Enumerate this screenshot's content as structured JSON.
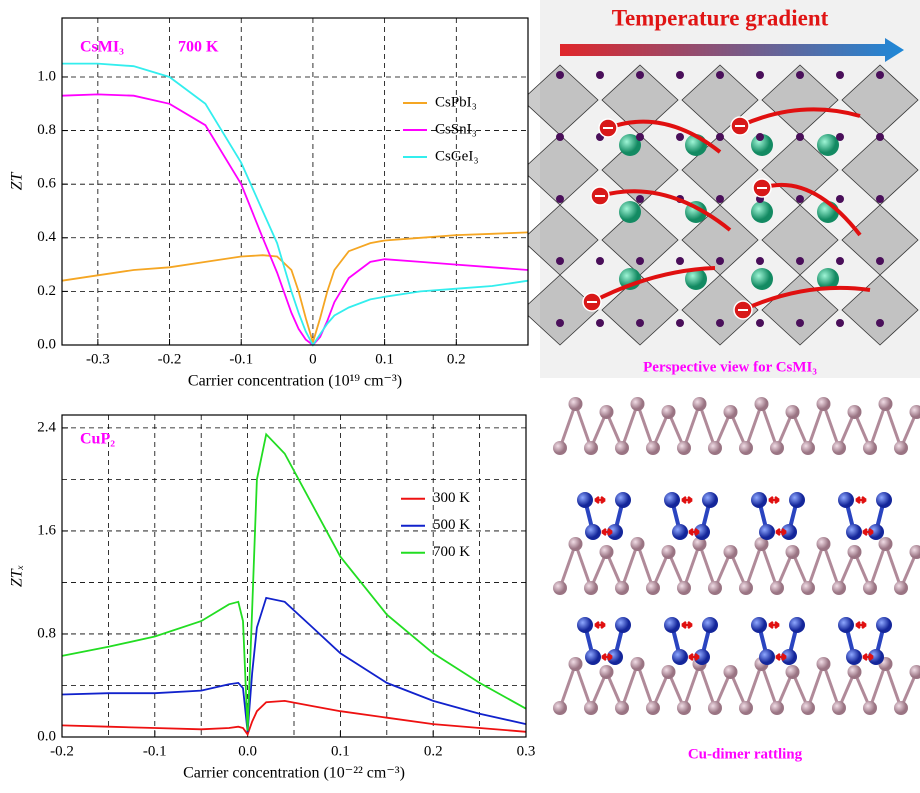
{
  "chart_data": [
    {
      "type": "line",
      "annotations": [
        "CsMI₃",
        "700 K"
      ],
      "xlabel": "Carrier concentration (10¹⁹ cm⁻³)",
      "ylabel": "ZT",
      "xlim": [
        -0.35,
        0.3
      ],
      "ylim": [
        0,
        1.22
      ],
      "xticks": [
        -0.3,
        -0.2,
        -0.1,
        {
          "value": 0,
          "label": "0"
        },
        0.1,
        0.2
      ],
      "yticks": [
        {
          "value": 0,
          "label": "0.0"
        },
        0.2,
        0.4,
        0.6,
        0.8,
        {
          "value": 1,
          "label": "1.0"
        }
      ],
      "grid": true,
      "legend": "upper right",
      "x": [
        -0.35,
        -0.3,
        -0.25,
        -0.2,
        -0.15,
        -0.1,
        -0.07,
        -0.05,
        -0.03,
        -0.02,
        -0.01,
        0,
        0.01,
        0.02,
        0.03,
        0.05,
        0.08,
        0.1,
        0.15,
        0.2,
        0.25,
        0.3
      ],
      "series": [
        {
          "name": "CsPbI₃",
          "color": "#f5a623",
          "values": [
            0.24,
            0.26,
            0.28,
            0.29,
            0.31,
            0.33,
            0.335,
            0.33,
            0.28,
            0.2,
            0.1,
            0.01,
            0.1,
            0.2,
            0.28,
            0.35,
            0.38,
            0.39,
            0.4,
            0.41,
            0.415,
            0.42
          ]
        },
        {
          "name": "CsSnI₃",
          "color": "#ff00ff",
          "values": [
            0.93,
            0.935,
            0.93,
            0.9,
            0.82,
            0.6,
            0.4,
            0.27,
            0.12,
            0.06,
            0.02,
            0,
            0.03,
            0.09,
            0.16,
            0.25,
            0.31,
            0.32,
            0.31,
            0.3,
            0.29,
            0.28
          ]
        },
        {
          "name": "CsGeI₃",
          "color": "#33eeee",
          "values": [
            1.05,
            1.05,
            1.04,
            1.0,
            0.9,
            0.68,
            0.5,
            0.38,
            0.2,
            0.12,
            0.05,
            0,
            0.04,
            0.08,
            0.11,
            0.14,
            0.17,
            0.18,
            0.2,
            0.21,
            0.22,
            0.24
          ]
        }
      ]
    },
    {
      "type": "line",
      "annotations": [
        "CuP₂"
      ],
      "xlabel": "Carrier concentration (10⁻²² cm⁻³)",
      "ylabel": "ZTₓ",
      "xlim": [
        -0.2,
        0.3
      ],
      "ylim": [
        0,
        2.5
      ],
      "xticks": [
        -0.2,
        -0.1,
        {
          "value": 0,
          "label": "0.0"
        },
        0.1,
        0.2,
        0.3
      ],
      "minor_xticks": [
        -0.15,
        -0.05,
        0.05,
        0.15,
        0.25
      ],
      "yticks": [
        {
          "value": 0,
          "label": "0.0"
        },
        0.8,
        1.6,
        2.4
      ],
      "minor_yticks": [
        0.4,
        1.2,
        2.0
      ],
      "grid": true,
      "legend": "upper right",
      "x": [
        -0.2,
        -0.15,
        -0.1,
        -0.05,
        -0.02,
        -0.01,
        -0.005,
        0,
        0.005,
        0.01,
        0.02,
        0.04,
        0.07,
        0.1,
        0.15,
        0.2,
        0.25,
        0.3
      ],
      "series": [
        {
          "name": "300 K",
          "color": "#ee1111",
          "values": [
            0.09,
            0.08,
            0.07,
            0.06,
            0.07,
            0.08,
            0.07,
            0.02,
            0.12,
            0.2,
            0.27,
            0.28,
            0.24,
            0.2,
            0.15,
            0.1,
            0.07,
            0.04
          ]
        },
        {
          "name": "500 K",
          "color": "#1122cc",
          "values": [
            0.33,
            0.34,
            0.34,
            0.36,
            0.41,
            0.42,
            0.38,
            0.04,
            0.5,
            0.85,
            1.08,
            1.05,
            0.85,
            0.65,
            0.42,
            0.28,
            0.18,
            0.1
          ]
        },
        {
          "name": "700 K",
          "color": "#22dd22",
          "values": [
            0.63,
            0.7,
            0.78,
            0.9,
            1.03,
            1.05,
            0.9,
            0.05,
            1.0,
            2.0,
            2.35,
            2.2,
            1.8,
            1.4,
            0.95,
            0.65,
            0.42,
            0.22
          ]
        }
      ]
    }
  ],
  "images": [
    {
      "title": "Temperature gradient",
      "caption": "Perspective view for CsMI₃"
    },
    {
      "caption": "Cu-dimer rattling"
    }
  ]
}
